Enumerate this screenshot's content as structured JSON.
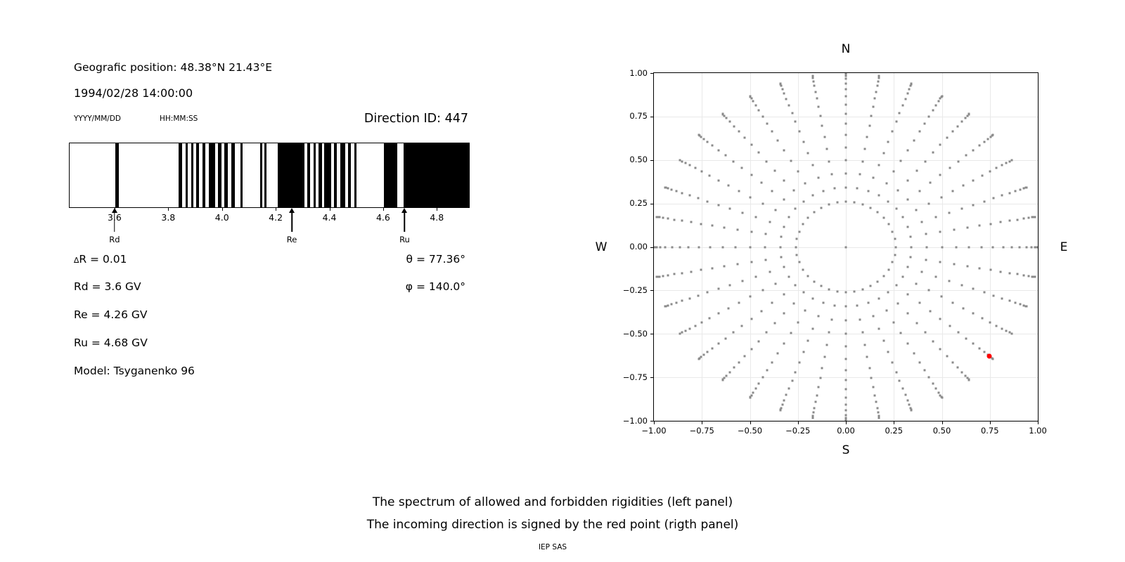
{
  "header": {
    "position": "Geografic position: 48.38°N 21.43°E",
    "datetime": "1994/02/28 14:00:00",
    "date_format": "YYYY/MM/DD",
    "time_format": "HH:MM:SS",
    "direction_id": "Direction ID: 447"
  },
  "spectrum_info": {
    "delta_symbol": "∆",
    "delta_rest": "R = 0.01",
    "rd": "Rd = 3.6 GV",
    "re": "Re = 4.26 GV",
    "ru": "Ru = 4.68 GV",
    "model": "Model: Tsyganenko 96",
    "theta": "θ = 77.36°",
    "phi": "φ = 140.0°"
  },
  "caption": {
    "line1": "The spectrum of allowed and forbidden rigidities (left panel)",
    "line2": "The incoming direction is signed by the red point (rigth panel)",
    "credit": "IEP SAS"
  },
  "chart_data": [
    {
      "type": "barcode",
      "title": "Spectrum of allowed (black) and forbidden (white) rigidities",
      "xlim": [
        3.43,
        4.917
      ],
      "delta_r_gv": 0.01,
      "ticks": [
        {
          "value": 3.6,
          "label": "3.6"
        },
        {
          "value": 3.8,
          "label": "3.8"
        },
        {
          "value": 4.0,
          "label": "4.0"
        },
        {
          "value": 4.2,
          "label": "4.2"
        },
        {
          "value": 4.4,
          "label": "4.4"
        },
        {
          "value": 4.6,
          "label": "4.6"
        },
        {
          "value": 4.8,
          "label": "4.8"
        }
      ],
      "markers": [
        {
          "label": "Rd",
          "value": 3.6
        },
        {
          "label": "Re",
          "value": 4.26
        },
        {
          "label": "Ru",
          "value": 4.68
        }
      ],
      "allowed_bands_gv": [
        [
          3.6,
          3.612
        ],
        [
          3.835,
          3.849
        ],
        [
          3.861,
          3.871
        ],
        [
          3.882,
          3.891
        ],
        [
          3.901,
          3.913
        ],
        [
          3.924,
          3.936
        ],
        [
          3.948,
          3.971
        ],
        [
          3.982,
          3.995
        ],
        [
          4.007,
          4.02
        ],
        [
          4.032,
          4.045
        ],
        [
          4.065,
          4.074
        ],
        [
          4.14,
          4.147
        ],
        [
          4.154,
          4.164
        ],
        [
          4.204,
          4.304
        ],
        [
          4.315,
          4.326
        ],
        [
          4.338,
          4.347
        ],
        [
          4.357,
          4.369
        ],
        [
          4.377,
          4.404
        ],
        [
          4.415,
          4.425
        ],
        [
          4.437,
          4.457
        ],
        [
          4.468,
          4.477
        ],
        [
          4.489,
          4.498
        ],
        [
          4.601,
          4.65
        ],
        [
          4.674,
          4.917
        ]
      ],
      "colors": {
        "allowed": "#000000",
        "forbidden": "#ffffff"
      }
    },
    {
      "type": "scatter",
      "title": "Incoming direction grid (orthographic sky projection)",
      "xlim": [
        -1,
        1
      ],
      "ylim": [
        -1,
        1
      ],
      "grid_on": true,
      "compass": {
        "n": "N",
        "s": "S",
        "e": "E",
        "w": "W"
      },
      "xticks": [
        {
          "value": -1.0,
          "label": "−1.00"
        },
        {
          "value": -0.75,
          "label": "−0.75"
        },
        {
          "value": -0.5,
          "label": "−0.50"
        },
        {
          "value": -0.25,
          "label": "−0.25"
        },
        {
          "value": 0.0,
          "label": "0.00"
        },
        {
          "value": 0.25,
          "label": "0.25"
        },
        {
          "value": 0.5,
          "label": "0.50"
        },
        {
          "value": 0.75,
          "label": "0.75"
        },
        {
          "value": 1.0,
          "label": "1.00"
        }
      ],
      "yticks": [
        {
          "value": 1.0,
          "label": "1.00"
        },
        {
          "value": 0.75,
          "label": "0.75"
        },
        {
          "value": 0.5,
          "label": "0.50"
        },
        {
          "value": 0.25,
          "label": "0.25"
        },
        {
          "value": 0.0,
          "label": "0.00"
        },
        {
          "value": -0.25,
          "label": "−0.25"
        },
        {
          "value": -0.5,
          "label": "−0.50"
        },
        {
          "value": -0.75,
          "label": "−0.75"
        },
        {
          "value": -1.0,
          "label": "−1.00"
        }
      ],
      "dot_grid": {
        "projection": "x=sin(zenith)*sin(azimuth), y=sin(zenith)*cos(azimuth)",
        "azimuth_deg": {
          "start": 0,
          "stop": 350,
          "step": 10
        },
        "zenith_deg": {
          "start": 15,
          "stop": 90,
          "step": 5
        },
        "center_dot": true
      },
      "red_point": {
        "x": 0.747,
        "y": -0.627,
        "zenith_deg": 77.36,
        "plot_azimuth_deg": 130
      },
      "colors": {
        "dot": "#8a8a8a",
        "red": "#ff0000",
        "grid": "#e9e9e9"
      }
    }
  ]
}
